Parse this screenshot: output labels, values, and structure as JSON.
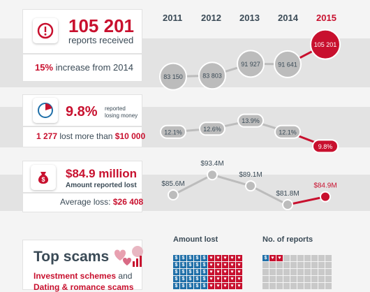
{
  "colors": {
    "accent": "#c8102e",
    "text": "#3a4a56",
    "marker": "#bcbcbc",
    "money": "#1f4e79"
  },
  "years": [
    "2011",
    "2012",
    "2013",
    "2014",
    "2015"
  ],
  "panel1": {
    "big": "105 201",
    "sub": "reports received",
    "pct": "15%",
    "rest": "increase from 2014",
    "icon": "alert-icon"
  },
  "panel2": {
    "big": "9.8%",
    "sub1": "reported",
    "sub2": "losing money",
    "count": "1 277",
    "mid": "lost more than",
    "amount": "$10 000",
    "icon": "pie-gauge-icon"
  },
  "panel3": {
    "big": "$84.9 million",
    "sub": "Amount reported lost",
    "avg_label": "Average loss:",
    "avg_value": "$26 408",
    "icon": "money-bag-icon"
  },
  "panel4": {
    "title": "Top scams",
    "line1_a": "Investment schemes",
    "line1_b": "and",
    "line2": "Dating & romance scams",
    "icon": "hearts-chart-icon"
  },
  "waffle_titles": {
    "amount": "Amount lost",
    "reports": "No. of reports"
  },
  "chart_data": [
    {
      "type": "line",
      "x": [
        "2011",
        "2012",
        "2013",
        "2014",
        "2015"
      ],
      "series": [
        {
          "values": [
            83150,
            83803,
            91927,
            91641,
            105201
          ]
        }
      ],
      "labels": [
        "83 150",
        "83 803",
        "91 927",
        "91 641",
        "105 201"
      ]
    },
    {
      "type": "line",
      "x": [
        "2011",
        "2012",
        "2013",
        "2014",
        "2015"
      ],
      "series": [
        {
          "values": [
            12.1,
            12.6,
            13.9,
            12.1,
            9.8
          ]
        }
      ],
      "labels": [
        "12.1%",
        "12.6%",
        "13.9%",
        "12.1%",
        "9.8%"
      ]
    },
    {
      "type": "line",
      "x": [
        "2011",
        "2012",
        "2013",
        "2014",
        "2015"
      ],
      "series": [
        {
          "values": [
            85.6,
            93.4,
            89.1,
            81.8,
            84.9
          ]
        }
      ],
      "labels": [
        "$85.6M",
        "$93.4M",
        "$89.1M",
        "$81.8M",
        "$84.9M"
      ]
    }
  ]
}
